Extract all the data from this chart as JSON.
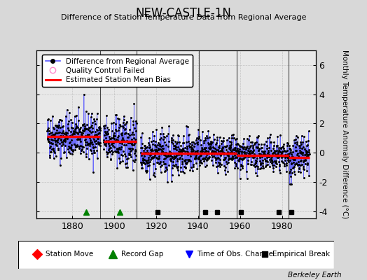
{
  "title": "NEW-CASTLE-1N",
  "subtitle": "Difference of Station Temperature Data from Regional Average",
  "ylabel": "Monthly Temperature Anomaly Difference (°C)",
  "bg_color": "#d8d8d8",
  "plot_bg_color": "#e8e8e8",
  "xlim": [
    1863,
    1996
  ],
  "ylim": [
    -4.5,
    7.0
  ],
  "yticks": [
    -4,
    -2,
    0,
    2,
    4,
    6
  ],
  "xticks": [
    1880,
    1900,
    1920,
    1940,
    1960,
    1980
  ],
  "seed": 42,
  "segments": [
    {
      "start": 1868.0,
      "end": 1893.4,
      "mean": 1.1,
      "std": 0.75
    },
    {
      "start": 1894.8,
      "end": 1910.5,
      "mean": 0.75,
      "std": 0.85
    },
    {
      "start": 1912.5,
      "end": 1928.0,
      "mean": -0.05,
      "std": 0.72
    },
    {
      "start": 1928.0,
      "end": 1940.5,
      "mean": -0.05,
      "std": 0.72
    },
    {
      "start": 1940.5,
      "end": 1958.5,
      "mean": -0.05,
      "std": 0.6
    },
    {
      "start": 1958.5,
      "end": 1983.0,
      "mean": -0.18,
      "std": 0.55
    },
    {
      "start": 1983.0,
      "end": 1993.0,
      "mean": -0.35,
      "std": 0.7
    }
  ],
  "bias_segments": [
    {
      "start": 1868.0,
      "end": 1893.4,
      "value": 1.1
    },
    {
      "start": 1894.8,
      "end": 1910.5,
      "value": 0.75
    },
    {
      "start": 1912.5,
      "end": 1940.5,
      "value": -0.05
    },
    {
      "start": 1940.5,
      "end": 1958.5,
      "value": -0.05
    },
    {
      "start": 1958.5,
      "end": 1983.0,
      "value": -0.18
    },
    {
      "start": 1983.0,
      "end": 1993.0,
      "value": -0.35
    }
  ],
  "vertical_lines": [
    1893.4,
    1910.5,
    1940.5,
    1958.5,
    1983.0
  ],
  "record_gaps": [
    1886.5,
    1902.5
  ],
  "empirical_breaks": [
    1920.5,
    1943.5,
    1949.0,
    1960.5,
    1978.5,
    1984.5
  ],
  "time_obs_changes": [],
  "station_moves": [],
  "berkeley_earth_text": "Berkeley Earth"
}
